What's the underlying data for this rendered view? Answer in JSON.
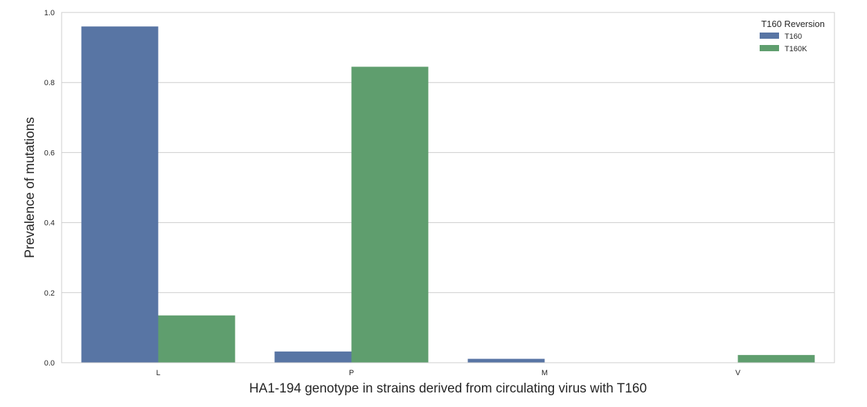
{
  "chart_data": {
    "type": "bar",
    "title": "",
    "xlabel": "HA1-194 genotype in strains derived from circulating virus with T160",
    "ylabel": "Prevalence of mutations",
    "categories": [
      "L",
      "P",
      "M",
      "V"
    ],
    "series": [
      {
        "name": "T160",
        "color": "#5875a4",
        "values": [
          0.96,
          0.032,
          0.011,
          0.0
        ]
      },
      {
        "name": "T160K",
        "color": "#5f9e6e",
        "values": [
          0.135,
          0.845,
          0.0,
          0.022
        ]
      }
    ],
    "ylim": [
      0,
      1.0
    ],
    "yticks": [
      "0.0",
      "0.2",
      "0.4",
      "0.6",
      "0.8",
      "1.0"
    ],
    "grid": "horizontal",
    "legend": {
      "title": "T160 Reversion",
      "placement": "top-right"
    }
  }
}
